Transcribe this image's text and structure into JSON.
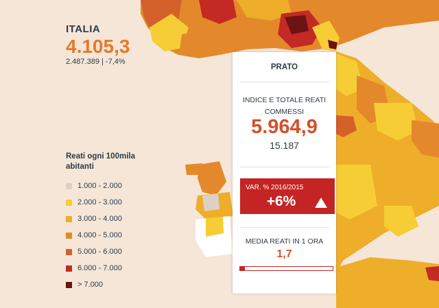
{
  "italia": {
    "name": "ITALIA",
    "index": "4.105,3",
    "sub": "2.487.389 | -7,4%"
  },
  "legend": {
    "title": "Reati ogni 100mila abitanti",
    "items": [
      {
        "label": "1.000 - 2.000",
        "color": "#dcd0c8"
      },
      {
        "label": "2.000 - 3.000",
        "color": "#f6cd35"
      },
      {
        "label": "3.000 - 4.000",
        "color": "#eeae2a"
      },
      {
        "label": "4.000 - 5.000",
        "color": "#e4892b"
      },
      {
        "label": "5.000 - 6.000",
        "color": "#d4602a"
      },
      {
        "label": "6.000 - 7.000",
        "color": "#c42a24"
      },
      {
        "label": "> 7.000",
        "color": "#6d1212"
      }
    ]
  },
  "panel": {
    "title": "PRATO",
    "index_label": "INDICE E TOTALE REATI COMMESSI",
    "index_value": "5.964,9",
    "index_total": "15.187",
    "var_label": "VAR. % 2016/2015",
    "var_value": "+6%",
    "media_label": "MEDIA REATI IN 1 ORA",
    "media_value": "1,7",
    "media_level": 0.05
  }
}
